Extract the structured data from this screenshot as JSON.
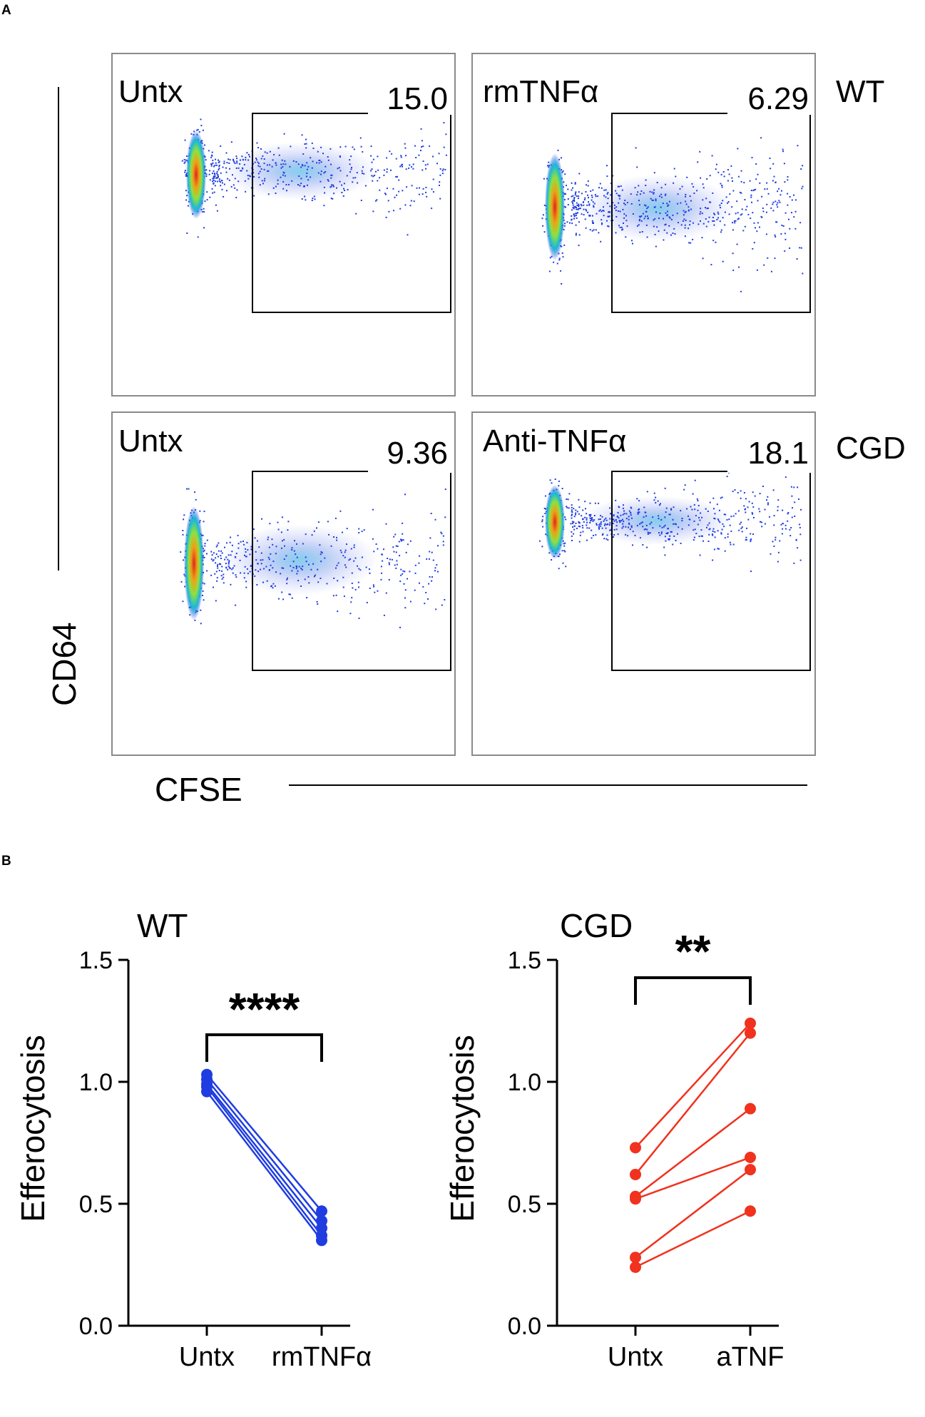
{
  "panels": {
    "a": "A",
    "b": "B"
  },
  "panel_a": {
    "x_axis_label": "CFSE",
    "y_axis_label": "CD64",
    "row_labels": [
      "WT",
      "CGD"
    ],
    "plots": [
      {
        "treatment": "Untx",
        "gate_value": "15.0"
      },
      {
        "treatment": "rmTNFα",
        "gate_value": "6.29"
      },
      {
        "treatment": "Untx",
        "gate_value": "9.36"
      },
      {
        "treatment": "Anti-TNFα",
        "gate_value": "18.1"
      }
    ]
  },
  "colors": {
    "wt_series": "#1f3de0",
    "cgd_series": "#f0321e",
    "axis": "#000000"
  },
  "chart_data": [
    {
      "type": "scatter",
      "title": "WT",
      "ylabel": "Efferocytosis",
      "xlabel": "",
      "categories": [
        "Untx",
        "rmTNFα"
      ],
      "ylim": [
        0,
        1.5
      ],
      "yticks": [
        "0.0",
        "0.5",
        "1.0",
        "1.5"
      ],
      "significance": "****",
      "paired": [
        [
          1.03,
          0.47
        ],
        [
          1.01,
          0.43
        ],
        [
          0.99,
          0.4
        ],
        [
          0.98,
          0.37
        ],
        [
          0.96,
          0.35
        ]
      ]
    },
    {
      "type": "scatter",
      "title": "CGD",
      "ylabel": "Efferocytosis",
      "xlabel": "",
      "categories": [
        "Untx",
        "aTNF"
      ],
      "ylim": [
        0,
        1.5
      ],
      "yticks": [
        "0.0",
        "0.5",
        "1.0",
        "1.5"
      ],
      "significance": "**",
      "paired": [
        [
          0.73,
          1.24
        ],
        [
          0.62,
          1.2
        ],
        [
          0.53,
          0.89
        ],
        [
          0.52,
          0.69
        ],
        [
          0.28,
          0.64
        ],
        [
          0.24,
          0.47
        ]
      ]
    }
  ]
}
